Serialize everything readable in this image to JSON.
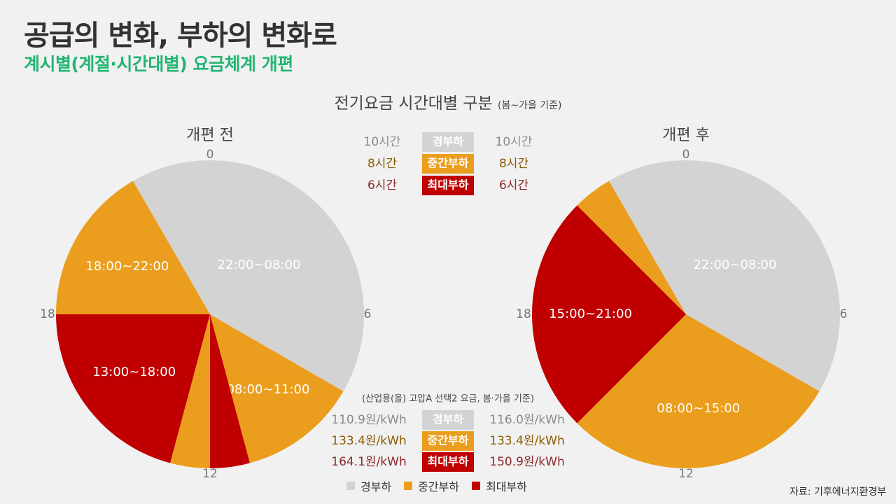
{
  "title": "공급의 변화, 부하의 변화로",
  "subtitle": "계시별(계절·시간대별) 요금체계 개편",
  "chart_title": "전기요금 시간대별 구분",
  "chart_title_note": "(봄~가을 기준)",
  "colors": {
    "light": "#d3d3d3",
    "mid": "#eb9e1d",
    "peak": "#c00000",
    "light_text": "#8a8a8a",
    "mid_text": "#8a5a00",
    "peak_text": "#8c2a2a"
  },
  "chart_data": {
    "type": "pie",
    "series": [
      {
        "name": "개편 전",
        "hour_ticks": [
          "0",
          "6",
          "12",
          "18"
        ],
        "slices": [
          {
            "load": "light",
            "start": 22,
            "end": 32,
            "label": "22:00~08:00"
          },
          {
            "load": "mid",
            "start": 8,
            "end": 11,
            "label": "08:00~11:00"
          },
          {
            "load": "peak",
            "start": 11,
            "end": 12,
            "label": ""
          },
          {
            "load": "mid",
            "start": 12,
            "end": 13,
            "label": ""
          },
          {
            "load": "peak",
            "start": 13,
            "end": 18,
            "label": "13:00~18:00"
          },
          {
            "load": "mid",
            "start": 18,
            "end": 22,
            "label": "18:00~22:00"
          }
        ]
      },
      {
        "name": "개편 후",
        "hour_ticks": [
          "0",
          "6",
          "12",
          "18"
        ],
        "slices": [
          {
            "load": "light",
            "start": 22,
            "end": 32,
            "label": "22:00~08:00"
          },
          {
            "load": "mid",
            "start": 8,
            "end": 15,
            "label": "08:00~15:00"
          },
          {
            "load": "peak",
            "start": 15,
            "end": 21,
            "label": "15:00~21:00"
          },
          {
            "load": "mid",
            "start": 21,
            "end": 22,
            "label": ""
          }
        ]
      }
    ]
  },
  "hours_table": {
    "rows": [
      {
        "load": "light",
        "tag": "경부하",
        "before": "10시간",
        "after": "10시간"
      },
      {
        "load": "mid",
        "tag": "중간부하",
        "before": "8시간",
        "after": "8시간"
      },
      {
        "load": "peak",
        "tag": "최대부하",
        "before": "6시간",
        "after": "6시간"
      }
    ]
  },
  "price_table": {
    "note": "(산업용(을) 고압A 선택2 요금, 봄·가을 기준)",
    "rows": [
      {
        "load": "light",
        "tag": "경부하",
        "before": "110.9원/kWh",
        "after": "116.0원/kWh"
      },
      {
        "load": "mid",
        "tag": "중간부하",
        "before": "133.4원/kWh",
        "after": "133.4원/kWh"
      },
      {
        "load": "peak",
        "tag": "최대부하",
        "before": "164.1원/kWh",
        "after": "150.9원/kWh"
      }
    ]
  },
  "legend": [
    {
      "load": "light",
      "label": "경부하"
    },
    {
      "load": "mid",
      "label": "중간부하"
    },
    {
      "load": "peak",
      "label": "최대부하"
    }
  ],
  "source": "자료: 기후에너지환경부"
}
